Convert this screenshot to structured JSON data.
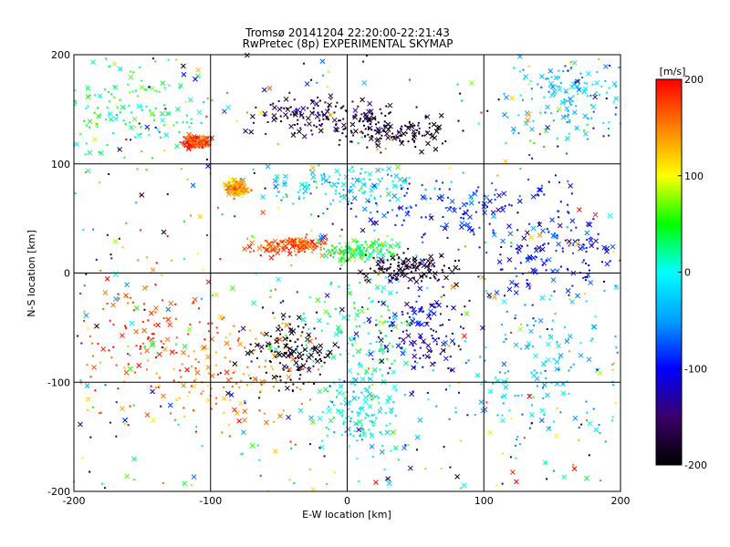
{
  "chart_data": {
    "type": "scatter",
    "title": "Tromsø 20141204 22:20:00-22:21:43",
    "subtitle": "RwPretec (8p) EXPERIMENTAL SKYMAP",
    "xlabel": "E-W location [km]",
    "ylabel": "N-S location [km]",
    "xlim": [
      -200,
      200
    ],
    "ylim": [
      -200,
      200
    ],
    "xticks": [
      -200,
      -100,
      0,
      100,
      200
    ],
    "yticks": [
      -200,
      -100,
      0,
      100,
      200
    ],
    "grid": true,
    "marker_types": [
      "dot",
      "cross"
    ],
    "colorbar": {
      "label": "[m/s]",
      "range": [
        -200,
        200
      ],
      "ticks": [
        200,
        100,
        0,
        -100,
        -200
      ],
      "colormap": [
        "#000000",
        "#3a006a",
        "#0000ff",
        "#00a0ff",
        "#00ffff",
        "#00ff00",
        "#ffff00",
        "#ff8000",
        "#ff0000"
      ]
    },
    "clusters": [
      {
        "x": -40,
        "y": 25,
        "spread_x": 20,
        "spread_y": 6,
        "velocity": 170
      },
      {
        "x": 10,
        "y": 20,
        "spread_x": 20,
        "spread_y": 8,
        "velocity": 40
      },
      {
        "x": 45,
        "y": 5,
        "spread_x": 25,
        "spread_y": 10,
        "velocity": -180
      },
      {
        "x": -20,
        "y": 145,
        "spread_x": 35,
        "spread_y": 12,
        "velocity": -160
      },
      {
        "x": 30,
        "y": 130,
        "spread_x": 30,
        "spread_y": 12,
        "velocity": -190
      },
      {
        "x": 0,
        "y": 80,
        "spread_x": 50,
        "spread_y": 12,
        "velocity": -20
      },
      {
        "x": 80,
        "y": 60,
        "spread_x": 60,
        "spread_y": 20,
        "velocity": -90
      },
      {
        "x": -150,
        "y": -60,
        "spread_x": 45,
        "spread_y": 50,
        "velocity": 175
      },
      {
        "x": -80,
        "y": -90,
        "spread_x": 40,
        "spread_y": 40,
        "velocity": 150
      },
      {
        "x": -40,
        "y": -70,
        "spread_x": 20,
        "spread_y": 25,
        "velocity": -190
      },
      {
        "x": 10,
        "y": -60,
        "spread_x": 30,
        "spread_y": 40,
        "velocity": 20
      },
      {
        "x": 55,
        "y": -55,
        "spread_x": 25,
        "spread_y": 30,
        "velocity": -120
      },
      {
        "x": 140,
        "y": -90,
        "spread_x": 40,
        "spread_y": 50,
        "velocity": -30
      },
      {
        "x": 160,
        "y": 160,
        "spread_x": 30,
        "spread_y": 25,
        "velocity": -30
      },
      {
        "x": -110,
        "y": 120,
        "spread_x": 8,
        "spread_y": 4,
        "velocity": 180
      },
      {
        "x": -80,
        "y": 78,
        "spread_x": 6,
        "spread_y": 5,
        "velocity": 140
      },
      {
        "x": 10,
        "y": -130,
        "spread_x": 20,
        "spread_y": 30,
        "velocity": -10
      },
      {
        "x": -160,
        "y": 150,
        "spread_x": 40,
        "spread_y": 30,
        "velocity": 30
      },
      {
        "x": 150,
        "y": 20,
        "spread_x": 40,
        "spread_y": 30,
        "velocity": -100
      }
    ],
    "background_count": 500,
    "cluster_point_count": 2600
  }
}
